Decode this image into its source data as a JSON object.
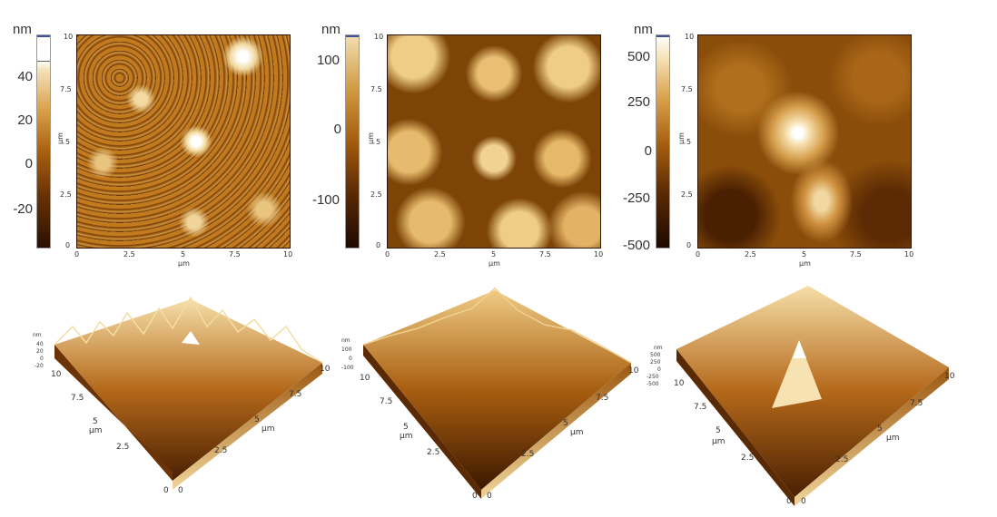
{
  "colors": {
    "afm_dark": "#1c0a00",
    "afm_mid": "#b0660e",
    "afm_light": "#f7e8c2",
    "afm_white": "#ffffff"
  },
  "panels": [
    {
      "unit": "nm",
      "colorbar_ticks": [
        "40",
        "20",
        "0",
        "-20"
      ],
      "x_ticks": [
        "0",
        "2.5",
        "5",
        "7.5",
        "10"
      ],
      "y_ticks": [
        "10",
        "7.5",
        "5",
        "2.5",
        "0"
      ],
      "x_label": "μm",
      "y_label": "μm",
      "surface3d": {
        "z_unit": "nm",
        "z_ticks": [
          "40",
          "20",
          "0",
          "-20"
        ],
        "x_ticks": [
          "0",
          "2.5",
          "5",
          "7.5",
          "10"
        ],
        "y_ticks": [
          "0",
          "2.5",
          "5",
          "7.5",
          "10"
        ],
        "x_label": "μm",
        "y_label": "μm"
      }
    },
    {
      "unit": "nm",
      "colorbar_ticks": [
        "100",
        "0",
        "-100"
      ],
      "x_ticks": [
        "0",
        "2.5",
        "5",
        "7.5",
        "10"
      ],
      "y_ticks": [
        "10",
        "7.5",
        "5",
        "2.5",
        "0"
      ],
      "x_label": "μm",
      "y_label": "μm",
      "surface3d": {
        "z_unit": "nm",
        "z_ticks": [
          "100",
          "0",
          "-100"
        ],
        "x_ticks": [
          "0",
          "2.5",
          "5",
          "7.5",
          "10"
        ],
        "y_ticks": [
          "0",
          "2.5",
          "5",
          "7.5",
          "10"
        ],
        "x_label": "μm",
        "y_label": "μm"
      }
    },
    {
      "unit": "nm",
      "colorbar_ticks": [
        "500",
        "250",
        "0",
        "-250",
        "-500"
      ],
      "x_ticks": [
        "0",
        "2.5",
        "5",
        "7.5",
        "10"
      ],
      "y_ticks": [
        "10",
        "7.5",
        "5",
        "2.5",
        "0"
      ],
      "x_label": "μm",
      "y_label": "μm",
      "surface3d": {
        "z_unit": "nm",
        "z_ticks": [
          "500",
          "250",
          "0",
          "-250",
          "-500"
        ],
        "x_ticks": [
          "0",
          "2.5",
          "5",
          "7.5",
          "10"
        ],
        "y_ticks": [
          "0",
          "2.5",
          "5",
          "7.5",
          "10"
        ],
        "x_label": "μm",
        "y_label": "μm"
      }
    }
  ]
}
